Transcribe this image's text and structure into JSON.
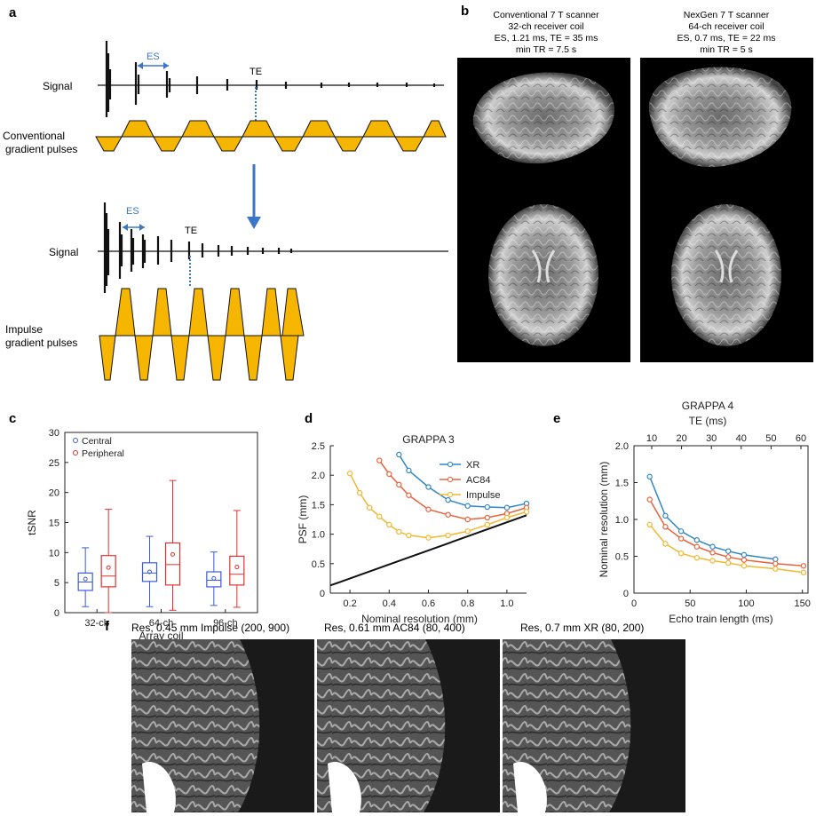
{
  "colors": {
    "gold": "#f6b600",
    "blue": "#3b77c8",
    "red": "#d9463c",
    "orange": "#e8623a",
    "yellow": "#f3b731",
    "xr_blue": "#2f86c5",
    "black": "#111111"
  },
  "panel_a": {
    "letter": "a",
    "top": {
      "signal_label": "Signal",
      "es_label": "ES",
      "te_label": "TE",
      "gradient_label_1": "Conventional",
      "gradient_label_2": "gradient pulses"
    },
    "bottom": {
      "signal_label": "Signal",
      "es_label": "ES",
      "te_label": "TE",
      "gradient_label_1": "Impulse",
      "gradient_label_2": "gradient pulses"
    }
  },
  "panel_b": {
    "letter": "b",
    "left_header": [
      "Conventional 7 T scanner",
      "32-ch receiver coil",
      "ES, 1.21 ms, TE = 35 ms",
      "min TR = 7.5 s"
    ],
    "right_header": [
      "NexGen 7 T scanner",
      "64-ch receiver coil",
      "ES, 0.7 ms, TE = 22 ms",
      "min TR = 5 s"
    ]
  },
  "panel_f": {
    "letter": "f",
    "labels": [
      "Res, 0.45 mm Impulse (200, 900)",
      "Res, 0.61 mm AC84 (80, 400)",
      "Res, 0.7 mm XR (80, 200)"
    ]
  },
  "chart_data": [
    {
      "panel": "c",
      "type": "box",
      "xlabel": "Array coil",
      "ylabel": "tSNR",
      "ylim": [
        0,
        30
      ],
      "yticks": [
        0,
        5,
        10,
        15,
        20,
        25,
        30
      ],
      "categories": [
        "32-ch",
        "64-ch",
        "96-ch"
      ],
      "legend": [
        "Central",
        "Peripheral"
      ],
      "legend_position": "top-left",
      "series": [
        {
          "name": "Central",
          "color": "#3b5bdb",
          "boxes": [
            {
              "min": 1.0,
              "q1": 3.7,
              "median": 5.1,
              "q3": 6.6,
              "max": 10.8,
              "mean": 5.6
            },
            {
              "min": 1.0,
              "q1": 5.2,
              "median": 6.6,
              "q3": 8.3,
              "max": 12.7,
              "mean": 6.8
            },
            {
              "min": 1.2,
              "q1": 4.3,
              "median": 5.4,
              "q3": 6.8,
              "max": 10.1,
              "mean": 5.7
            }
          ]
        },
        {
          "name": "Peripheral",
          "color": "#e03131",
          "boxes": [
            {
              "min": 0.0,
              "q1": 4.3,
              "median": 6.1,
              "q3": 9.5,
              "max": 17.2,
              "mean": 7.5
            },
            {
              "min": 0.4,
              "q1": 4.6,
              "median": 8.0,
              "q3": 11.6,
              "max": 22.0,
              "mean": 9.7
            },
            {
              "min": 0.9,
              "q1": 4.6,
              "median": 6.4,
              "q3": 9.4,
              "max": 17.0,
              "mean": 7.6
            }
          ]
        }
      ]
    },
    {
      "panel": "d",
      "type": "line",
      "title": "GRAPPA 3",
      "xlabel": "Nominal resolution (mm)",
      "ylabel": "PSF (mm)",
      "xlim": [
        0.1,
        1.1
      ],
      "ylim": [
        0,
        2.5
      ],
      "xticks": [
        0.2,
        0.4,
        0.6,
        0.8,
        1.0
      ],
      "xtick_labels": [
        "0.2",
        "0.4",
        "0.6",
        "0.8",
        "1.0"
      ],
      "yticks": [
        0,
        0.5,
        1.0,
        1.5,
        2.0,
        2.5
      ],
      "ytick_labels": [
        "0",
        "0.5",
        "1.0",
        "1.5",
        "2.0",
        "2.5"
      ],
      "legend_position": "top-right",
      "series": [
        {
          "name": "XR",
          "color": "#2f86c5",
          "x": [
            0.45,
            0.5,
            0.6,
            0.7,
            0.8,
            0.9,
            1.0,
            1.1
          ],
          "y": [
            2.35,
            2.08,
            1.8,
            1.58,
            1.48,
            1.46,
            1.45,
            1.52
          ]
        },
        {
          "name": "AC84",
          "color": "#e8623a",
          "x": [
            0.35,
            0.4,
            0.45,
            0.5,
            0.6,
            0.7,
            0.8,
            0.9,
            1.0,
            1.1
          ],
          "y": [
            2.25,
            2.02,
            1.84,
            1.66,
            1.42,
            1.33,
            1.25,
            1.28,
            1.35,
            1.45
          ]
        },
        {
          "name": "Impulse",
          "color": "#f3b731",
          "x": [
            0.2,
            0.25,
            0.3,
            0.35,
            0.4,
            0.45,
            0.5,
            0.6,
            0.7,
            0.8,
            0.9,
            1.0,
            1.1
          ],
          "y": [
            2.03,
            1.7,
            1.45,
            1.3,
            1.16,
            1.04,
            0.98,
            0.94,
            0.98,
            1.05,
            1.16,
            1.28,
            1.38
          ]
        },
        {
          "name": "",
          "color": "#111111",
          "marker": "none",
          "x": [
            0.1,
            1.1
          ],
          "y": [
            0.13,
            1.32
          ]
        }
      ]
    },
    {
      "panel": "e",
      "type": "line",
      "title": "GRAPPA 4",
      "top_xlabel": "TE (ms)",
      "top_xticks": [
        10,
        20,
        30,
        40,
        50,
        60
      ],
      "xlabel": "Echo train length (ms)",
      "ylabel": "Nominal resolution (mm)",
      "xlim": [
        0,
        155
      ],
      "ylim": [
        0,
        2.0
      ],
      "xticks": [
        0,
        50,
        100,
        150
      ],
      "yticks": [
        0,
        0.5,
        1.0,
        1.5,
        2.0
      ],
      "ytick_labels": [
        "0",
        "0.5",
        "1.0",
        "1.5",
        "2.0"
      ],
      "series": [
        {
          "color": "#2f86c5",
          "x": [
            14,
            28,
            42,
            56,
            70,
            84,
            98,
            126
          ],
          "y": [
            1.58,
            1.05,
            0.84,
            0.72,
            0.63,
            0.57,
            0.52,
            0.46
          ]
        },
        {
          "color": "#e8623a",
          "x": [
            14,
            28,
            42,
            56,
            70,
            84,
            98,
            126,
            151
          ],
          "y": [
            1.27,
            0.9,
            0.74,
            0.63,
            0.55,
            0.49,
            0.45,
            0.4,
            0.37
          ]
        },
        {
          "color": "#f3b731",
          "x": [
            14,
            28,
            42,
            56,
            70,
            84,
            98,
            126,
            151
          ],
          "y": [
            0.93,
            0.67,
            0.54,
            0.48,
            0.44,
            0.41,
            0.37,
            0.33,
            0.28
          ]
        }
      ]
    }
  ]
}
